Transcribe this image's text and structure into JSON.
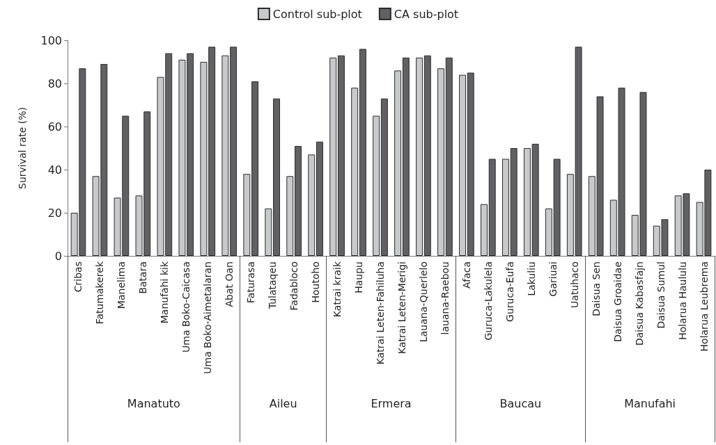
{
  "chart_data": {
    "type": "bar",
    "ylabel": "Survival rate (%)",
    "categories": [
      "Cribas",
      "Fatumakerek",
      "Manelima",
      "Batara",
      "Manufahi kik",
      "Uma Boko-Caicasa",
      "Uma Boko-Aimetalaran",
      "Abat Oan",
      "Faturasa",
      "Tulataqeu",
      "Fadabloco",
      "Houtoho",
      "Katrai kraik",
      "Haupu",
      "Katrai Leten-Fahiluha",
      "Katrai Leten-Merigi",
      "Lauana-Querlelo",
      "lauana-Raebou",
      "Afaca",
      "Guruca-Lakulela",
      "Guruca-Eufa",
      "Lakuliu",
      "Gariuai",
      "Uatuhaco",
      "Daisua Sen",
      "Daisua Groaidae",
      "Daisua Kabasfajn",
      "Daisua Sumul",
      "Holarua Haululu",
      "Holarua Leubrema"
    ],
    "series": [
      {
        "name": "Control sub-plot",
        "color": "#c8c9cb",
        "values": [
          20,
          37,
          27,
          28,
          83,
          91,
          90,
          93,
          38,
          22,
          37,
          47,
          92,
          78,
          65,
          86,
          92,
          87,
          84,
          24,
          45,
          50,
          22,
          38,
          37,
          26,
          19,
          14,
          28,
          25
        ]
      },
      {
        "name": "CA sub-plot",
        "color": "#616164",
        "values": [
          87,
          89,
          65,
          67,
          94,
          94,
          97,
          97,
          81,
          73,
          51,
          53,
          93,
          96,
          73,
          92,
          93,
          92,
          85,
          45,
          50,
          52,
          45,
          97,
          74,
          78,
          76,
          17,
          29,
          40
        ]
      }
    ],
    "annotations": [
      "Manatuto",
      "Aileu",
      "Ermera",
      "Baucau",
      "Manufahi"
    ],
    "ylim": [
      0,
      100
    ],
    "yticks": [
      0,
      20,
      40,
      60,
      80,
      100
    ],
    "grid": false,
    "legend": "top"
  }
}
